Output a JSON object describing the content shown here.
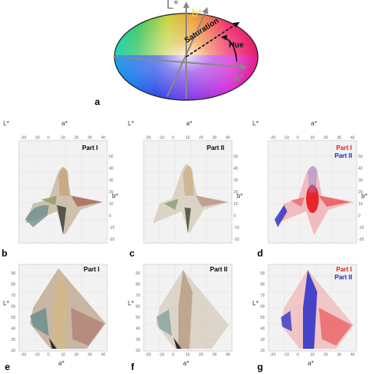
{
  "wheel": {
    "L_label": "L*",
    "a_label": "a*",
    "b_label": "b*",
    "saturation_label": "Saturation",
    "hue_label": "Hue"
  },
  "panel_letters": [
    "a",
    "b",
    "c",
    "d",
    "e",
    "f",
    "g"
  ],
  "legend": {
    "part1": "Part I",
    "part2": "Part II",
    "part1_color": "#e8141c",
    "part2_color": "#1a22c8"
  },
  "axes": {
    "L": "L*",
    "a": "a*",
    "b": "b*",
    "a_ticks_top": [
      "-20",
      "-10",
      "0",
      "10",
      "20",
      "30",
      "40"
    ],
    "b_ticks_right": [
      "50",
      "40",
      "30",
      "20",
      "10",
      "0",
      "-10",
      "-20"
    ],
    "L_ticks": [
      "90",
      "80",
      "70",
      "60",
      "50",
      "40",
      "30",
      "20"
    ],
    "a_ticks_bottom": [
      "-20",
      "-10",
      "0",
      "10",
      "20",
      "30",
      "40"
    ]
  }
}
